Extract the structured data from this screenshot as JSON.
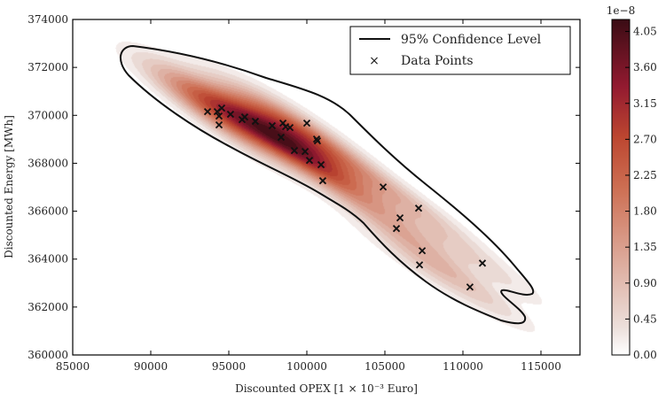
{
  "chart_data": {
    "type": "scatter",
    "title": "",
    "xlabel": "Discounted OPEX [1 × 10⁻³ Euro]",
    "ylabel": "Discounted Energy [MWh]",
    "xlim": [
      85000,
      117500
    ],
    "ylim": [
      360000,
      374000
    ],
    "xticks": [
      "85000",
      "90000",
      "95000",
      "100000",
      "105000",
      "110000",
      "115000"
    ],
    "yticks": [
      "360000",
      "362000",
      "364000",
      "366000",
      "368000",
      "370000",
      "372000",
      "374000"
    ],
    "legend": {
      "placement": "top-right",
      "entries": [
        "95% Confidence Level",
        "Data Points"
      ]
    },
    "colorbar": {
      "scale_label": "1e−8",
      "ticks": [
        "0.00",
        "0.45",
        "0.90",
        "1.35",
        "1.80",
        "2.25",
        "2.70",
        "3.15",
        "3.60",
        "4.05"
      ],
      "range": [
        0,
        4.2
      ]
    },
    "series": [
      {
        "name": "Data Points",
        "points": [
          [
            93640,
            370155
          ],
          [
            94260,
            370155
          ],
          [
            94545,
            370300
          ],
          [
            94375,
            369970
          ],
          [
            94375,
            369600
          ],
          [
            95110,
            370045
          ],
          [
            95850,
            369820
          ],
          [
            96020,
            369930
          ],
          [
            96700,
            369750
          ],
          [
            97780,
            369565
          ],
          [
            98470,
            369675
          ],
          [
            98640,
            369525
          ],
          [
            98920,
            369490
          ],
          [
            98350,
            369085
          ],
          [
            100000,
            369675
          ],
          [
            100625,
            369010
          ],
          [
            100680,
            368935
          ],
          [
            99200,
            368530
          ],
          [
            99890,
            368490
          ],
          [
            100170,
            368120
          ],
          [
            100910,
            367940
          ],
          [
            101020,
            367270
          ],
          [
            104890,
            367010
          ],
          [
            107160,
            366125
          ],
          [
            105970,
            365720
          ],
          [
            105740,
            365275
          ],
          [
            107390,
            364350
          ],
          [
            107220,
            363760
          ],
          [
            111250,
            363830
          ],
          [
            110450,
            362835
          ]
        ]
      }
    ]
  }
}
